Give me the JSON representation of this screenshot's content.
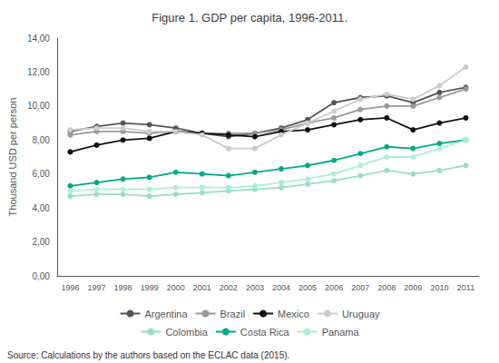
{
  "chart_data": {
    "type": "line",
    "title": "Figure 1. GDP per capita, 1996-2011.",
    "ylabel": "Thousand USD per person",
    "annotations": [
      "Source: Calculations by the authors based on the ECLAC data (2015)."
    ],
    "categories": [
      "1996",
      "1997",
      "1998",
      "1999",
      "2000",
      "2001",
      "2002",
      "2003",
      "2004",
      "2005",
      "2006",
      "2007",
      "2008",
      "2009",
      "2010",
      "2011"
    ],
    "series": [
      {
        "name": "Argentina",
        "color": "#555555",
        "marker": "circle",
        "values": [
          8.5,
          8.8,
          9.0,
          8.9,
          8.7,
          8.4,
          8.2,
          8.4,
          8.7,
          9.2,
          10.2,
          10.5,
          10.6,
          10.2,
          10.8,
          11.1
        ]
      },
      {
        "name": "Brazil",
        "color": "#999999",
        "marker": "circle",
        "values": [
          8.3,
          8.5,
          8.5,
          8.4,
          8.5,
          8.4,
          8.4,
          8.4,
          8.6,
          9.0,
          9.3,
          9.8,
          10.0,
          10.0,
          10.5,
          11.0
        ]
      },
      {
        "name": "Mexico",
        "color": "#111111",
        "marker": "circle",
        "values": [
          7.3,
          7.7,
          8.0,
          8.1,
          8.5,
          8.4,
          8.3,
          8.2,
          8.5,
          8.6,
          8.9,
          9.2,
          9.3,
          8.6,
          9.0,
          9.3
        ]
      },
      {
        "name": "Uruguay",
        "color": "#cccccc",
        "marker": "circle",
        "values": [
          8.6,
          8.7,
          8.7,
          8.5,
          8.5,
          8.3,
          7.5,
          7.5,
          8.3,
          9.0,
          9.7,
          10.4,
          10.7,
          10.4,
          11.2,
          12.3
        ]
      },
      {
        "name": "Colombia",
        "color": "#99ddcc",
        "marker": "circle",
        "values": [
          4.7,
          4.8,
          4.8,
          4.7,
          4.8,
          4.9,
          5.0,
          5.1,
          5.2,
          5.4,
          5.6,
          5.9,
          6.2,
          6.0,
          6.2,
          6.5
        ]
      },
      {
        "name": "Costa Rica",
        "color": "#00aa88",
        "marker": "circle",
        "values": [
          5.3,
          5.5,
          5.7,
          5.8,
          6.1,
          6.0,
          5.9,
          6.1,
          6.3,
          6.5,
          6.8,
          7.2,
          7.6,
          7.5,
          7.8,
          8.0
        ]
      },
      {
        "name": "Panama",
        "color": "#aaeedd",
        "marker": "circle",
        "values": [
          5.0,
          5.1,
          5.1,
          5.1,
          5.2,
          5.2,
          5.2,
          5.3,
          5.5,
          5.7,
          6.0,
          6.5,
          7.0,
          7.0,
          7.5,
          8.0
        ]
      }
    ],
    "ylim": [
      0,
      14
    ],
    "yticks": [
      {
        "value": 0,
        "label": "0,00"
      },
      {
        "value": 2,
        "label": "2,00"
      },
      {
        "value": 4,
        "label": "4,00"
      },
      {
        "value": 6,
        "label": "6,00"
      },
      {
        "value": 8,
        "label": "8,00"
      },
      {
        "value": 10,
        "label": "10,00"
      },
      {
        "value": 12,
        "label": "12,00"
      },
      {
        "value": 14,
        "label": "14,00"
      }
    ],
    "grid": false,
    "legend": "bottom"
  }
}
